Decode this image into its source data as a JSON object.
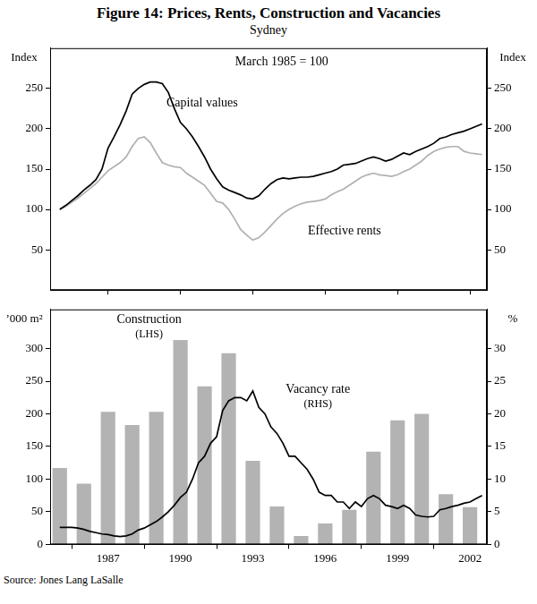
{
  "title": "Figure 14: Prices, Rents, Construction and Vacancies",
  "subtitle": "Sydney",
  "source": "Source: Jones Lang LaSalle",
  "chart_data": [
    {
      "type": "line",
      "x": [
        1985,
        1985.25,
        1985.5,
        1985.75,
        1986,
        1986.25,
        1986.5,
        1986.75,
        1987,
        1987.25,
        1987.5,
        1987.75,
        1988,
        1988.25,
        1988.5,
        1988.75,
        1989,
        1989.25,
        1989.5,
        1989.75,
        1990,
        1990.25,
        1990.5,
        1990.75,
        1991,
        1991.25,
        1991.5,
        1991.75,
        1992,
        1992.25,
        1992.5,
        1992.75,
        1993,
        1993.25,
        1993.5,
        1993.75,
        1994,
        1994.25,
        1994.5,
        1994.75,
        1995,
        1995.25,
        1995.5,
        1995.75,
        1996,
        1996.25,
        1996.5,
        1996.75,
        1997,
        1997.25,
        1997.5,
        1997.75,
        1998,
        1998.25,
        1998.5,
        1998.75,
        1999,
        1999.25,
        1999.5,
        1999.75,
        2000,
        2000.25,
        2000.5,
        2000.75,
        2001,
        2001.25,
        2001.5,
        2001.75,
        2002,
        2002.25,
        2002.5
      ],
      "series": [
        {
          "name": "Capital values",
          "color": "#000000",
          "label": {
            "x": 1990.9,
            "y": 232
          },
          "values": [
            100,
            105,
            111,
            117,
            124,
            130,
            137,
            150,
            176,
            190,
            205,
            222,
            243,
            250,
            255,
            258,
            258,
            256,
            245,
            225,
            208,
            200,
            190,
            178,
            165,
            150,
            138,
            128,
            124,
            121,
            118,
            114,
            113,
            117,
            125,
            132,
            137,
            139,
            138,
            139,
            140,
            140,
            141,
            143,
            145,
            147,
            150,
            155,
            156,
            157,
            160,
            163,
            165,
            163,
            160,
            162,
            166,
            170,
            168,
            172,
            175,
            178,
            182,
            188,
            190,
            193,
            195,
            197,
            200,
            203,
            206
          ]
        },
        {
          "name": "Effective rents",
          "color": "#b0b0b0",
          "label": {
            "x": 1996.8,
            "y": 73
          },
          "values": [
            100,
            104,
            109,
            114,
            120,
            126,
            132,
            140,
            148,
            153,
            158,
            165,
            178,
            188,
            190,
            183,
            170,
            158,
            155,
            153,
            152,
            145,
            140,
            135,
            130,
            120,
            110,
            108,
            100,
            88,
            75,
            68,
            62,
            65,
            72,
            80,
            88,
            95,
            100,
            104,
            107,
            109,
            110,
            111,
            113,
            118,
            122,
            125,
            130,
            135,
            140,
            143,
            145,
            143,
            142,
            141,
            143,
            147,
            150,
            155,
            160,
            167,
            172,
            175,
            177,
            178,
            178,
            172,
            170,
            169,
            168
          ]
        }
      ],
      "xlim": [
        1984.6,
        2002.7
      ],
      "xticks": [
        1987,
        1990,
        1993,
        1996,
        1999,
        2002
      ],
      "ylim": [
        0,
        300
      ],
      "yticks": [
        50,
        100,
        150,
        200,
        250
      ],
      "y2lim": [
        0,
        300
      ],
      "y2ticks": [
        50,
        100,
        150,
        200,
        250
      ],
      "y_label": "Index",
      "y2_label": "Index",
      "annotations": [
        {
          "text": "March 1985 = 100",
          "x": 1994.2,
          "y": 283
        }
      ],
      "grid": false,
      "tick_labels": "y"
    },
    {
      "type": "bar",
      "series": [
        {
          "name": "Construction (LHS)",
          "type": "bar",
          "color": "#b3b3b3",
          "label": {
            "x": 1988.7,
            "y": 333
          },
          "x": [
            1985,
            1986,
            1987,
            1988,
            1989,
            1990,
            1991,
            1992,
            1993,
            1994,
            1995,
            1996,
            1997,
            1998,
            1999,
            2000,
            2001,
            2002
          ],
          "values": [
            117,
            93,
            203,
            183,
            203,
            313,
            242,
            293,
            128,
            58,
            13,
            32,
            53,
            142,
            190,
            200,
            77,
            57
          ]
        },
        {
          "name": "Vacancy rate (RHS)",
          "type": "line",
          "axis": "y2",
          "color": "#000000",
          "label": {
            "x": 1995.7,
            "y": 226
          },
          "x": [
            1985,
            1985.25,
            1985.5,
            1985.75,
            1986,
            1986.25,
            1986.5,
            1986.75,
            1987,
            1987.25,
            1987.5,
            1987.75,
            1988,
            1988.25,
            1988.5,
            1988.75,
            1989,
            1989.25,
            1989.5,
            1989.75,
            1990,
            1990.25,
            1990.5,
            1990.75,
            1991,
            1991.25,
            1991.5,
            1991.75,
            1992,
            1992.25,
            1992.5,
            1992.75,
            1993,
            1993.25,
            1993.5,
            1993.75,
            1994,
            1994.25,
            1994.5,
            1994.75,
            1995,
            1995.25,
            1995.5,
            1995.75,
            1996,
            1996.25,
            1996.5,
            1996.75,
            1997,
            1997.25,
            1997.5,
            1997.75,
            1998,
            1998.25,
            1998.5,
            1998.75,
            1999,
            1999.25,
            1999.5,
            1999.75,
            2000,
            2000.25,
            2000.5,
            2000.75,
            2001,
            2001.25,
            2001.5,
            2001.75,
            2002,
            2002.25,
            2002.5
          ],
          "values": [
            2.6,
            2.6,
            2.6,
            2.5,
            2.3,
            2.0,
            1.8,
            1.6,
            1.5,
            1.3,
            1.2,
            1.3,
            1.6,
            2.2,
            2.5,
            3.0,
            3.5,
            4.2,
            5.0,
            6.0,
            7.2,
            8.0,
            10.0,
            12.5,
            13.5,
            15.5,
            16.5,
            20.5,
            22.0,
            22.5,
            22.5,
            22.0,
            23.5,
            21.0,
            20.0,
            18.0,
            17.0,
            15.5,
            13.5,
            13.5,
            12.5,
            11.5,
            10.0,
            8.0,
            7.5,
            7.5,
            6.5,
            6.5,
            5.5,
            6.5,
            5.8,
            7.0,
            7.5,
            7.0,
            6.0,
            5.8,
            5.5,
            6.0,
            5.5,
            4.5,
            4.3,
            4.2,
            4.3,
            5.3,
            5.5,
            5.8,
            6.0,
            6.3,
            6.5,
            7.0,
            7.5
          ]
        }
      ],
      "xlim": [
        1984.6,
        2002.7
      ],
      "xticks": [
        1987,
        1990,
        1993,
        1996,
        1999,
        2002
      ],
      "ylim": [
        0,
        360
      ],
      "yticks": [
        0,
        50,
        100,
        150,
        200,
        250,
        300
      ],
      "y2lim": [
        0,
        36
      ],
      "y2ticks": [
        0,
        5,
        10,
        15,
        20,
        25,
        30
      ],
      "y_label": "’000 m²",
      "y2_label": "%",
      "grid": false
    }
  ]
}
